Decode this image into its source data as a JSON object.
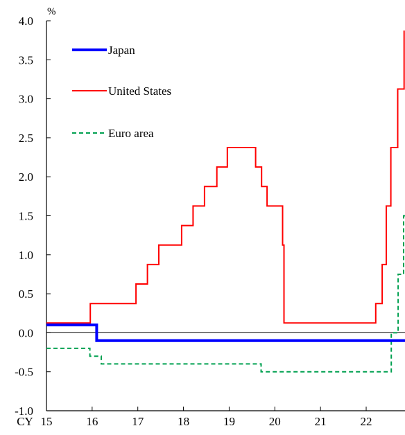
{
  "chart_data": {
    "type": "line",
    "unit_label": "%",
    "x_axis_prefix": "CY",
    "x_ticks": [
      "15",
      "16",
      "17",
      "18",
      "19",
      "20",
      "21",
      "22"
    ],
    "xlim": [
      2015,
      2022.85
    ],
    "ylim": [
      -1.0,
      4.0
    ],
    "y_ticks": [
      "4.0",
      "3.5",
      "3.0",
      "2.5",
      "2.0",
      "1.5",
      "1.0",
      "0.5",
      "0.0",
      "-0.5",
      "-1.0"
    ],
    "zero_line": true,
    "grid": false,
    "legend_position": "top-left",
    "series": [
      {
        "name": "Japan",
        "color": "#0000ff",
        "style": "solid-thick",
        "points": [
          [
            2015.0,
            0.1
          ],
          [
            2016.1,
            0.1
          ],
          [
            2016.1,
            -0.1
          ],
          [
            2022.85,
            -0.1
          ]
        ]
      },
      {
        "name": "United States",
        "color": "#ff0000",
        "style": "solid",
        "points": [
          [
            2015.0,
            0.125
          ],
          [
            2015.96,
            0.125
          ],
          [
            2015.96,
            0.375
          ],
          [
            2016.96,
            0.375
          ],
          [
            2016.96,
            0.625
          ],
          [
            2017.21,
            0.625
          ],
          [
            2017.21,
            0.875
          ],
          [
            2017.46,
            0.875
          ],
          [
            2017.46,
            1.125
          ],
          [
            2017.96,
            1.125
          ],
          [
            2017.96,
            1.375
          ],
          [
            2018.21,
            1.375
          ],
          [
            2018.21,
            1.625
          ],
          [
            2018.46,
            1.625
          ],
          [
            2018.46,
            1.875
          ],
          [
            2018.73,
            1.875
          ],
          [
            2018.73,
            2.125
          ],
          [
            2018.96,
            2.125
          ],
          [
            2018.96,
            2.375
          ],
          [
            2019.58,
            2.375
          ],
          [
            2019.58,
            2.125
          ],
          [
            2019.71,
            2.125
          ],
          [
            2019.71,
            1.875
          ],
          [
            2019.83,
            1.875
          ],
          [
            2019.83,
            1.625
          ],
          [
            2020.17,
            1.625
          ],
          [
            2020.17,
            1.125
          ],
          [
            2020.2,
            1.125
          ],
          [
            2020.2,
            0.125
          ],
          [
            2022.21,
            0.125
          ],
          [
            2022.21,
            0.375
          ],
          [
            2022.35,
            0.375
          ],
          [
            2022.35,
            0.875
          ],
          [
            2022.44,
            0.875
          ],
          [
            2022.44,
            1.625
          ],
          [
            2022.54,
            1.625
          ],
          [
            2022.54,
            2.375
          ],
          [
            2022.69,
            2.375
          ],
          [
            2022.69,
            3.125
          ],
          [
            2022.83,
            3.125
          ],
          [
            2022.83,
            3.875
          ]
        ]
      },
      {
        "name": "Euro area",
        "color": "#00a050",
        "style": "dashed",
        "points": [
          [
            2015.0,
            -0.2
          ],
          [
            2015.95,
            -0.2
          ],
          [
            2015.95,
            -0.3
          ],
          [
            2016.2,
            -0.3
          ],
          [
            2016.2,
            -0.4
          ],
          [
            2019.7,
            -0.4
          ],
          [
            2019.7,
            -0.5
          ],
          [
            2022.55,
            -0.5
          ],
          [
            2022.55,
            0.0
          ],
          [
            2022.7,
            0.0
          ],
          [
            2022.7,
            0.75
          ],
          [
            2022.82,
            0.75
          ],
          [
            2022.82,
            1.5
          ],
          [
            2022.85,
            1.5
          ]
        ]
      }
    ]
  }
}
